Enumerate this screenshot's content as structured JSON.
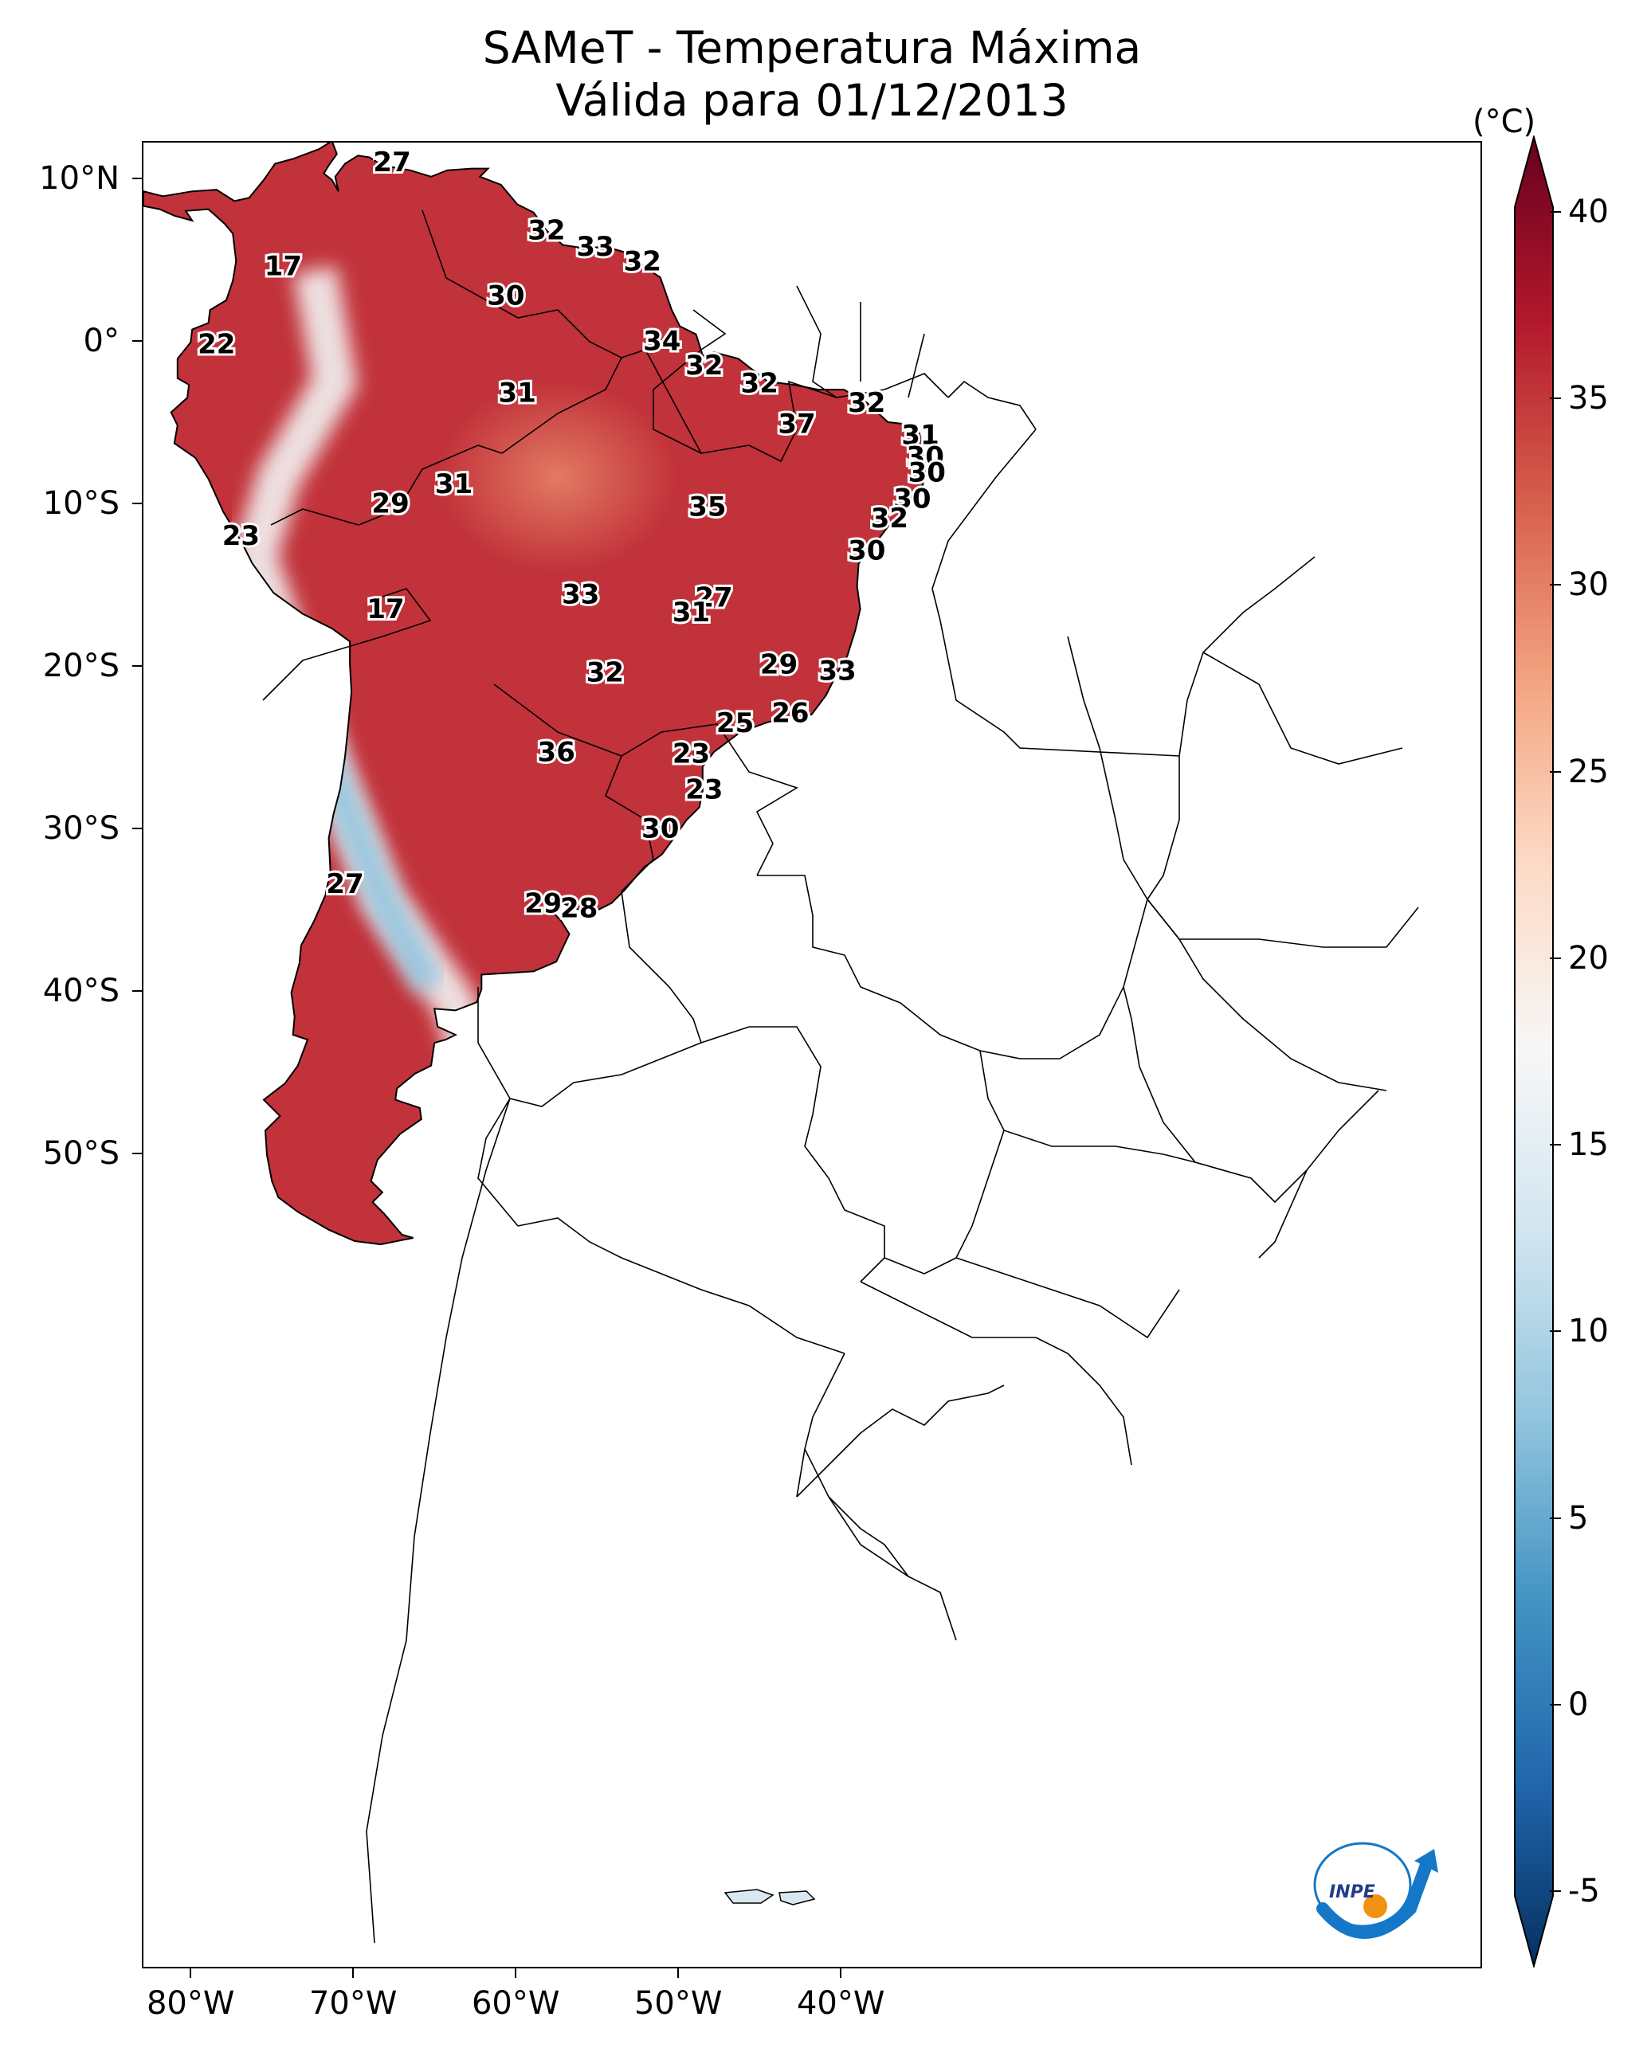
{
  "title": {
    "line1": "SAMeT - Temperatura Máxima",
    "line2": "Válida para 01/12/2013"
  },
  "colorbar": {
    "unit": "(°C)",
    "ticks": [
      "40",
      "35",
      "30",
      "25",
      "20",
      "15",
      "10",
      "5",
      "0",
      "-5"
    ],
    "range": [
      -7,
      42
    ],
    "colors": [
      "#053061",
      "#2166ac",
      "#4393c3",
      "#92c5de",
      "#d1e5f0",
      "#f7f7f7",
      "#fddbc7",
      "#f4a582",
      "#d6604d",
      "#b2182b",
      "#67001f"
    ]
  },
  "axes": {
    "lat_labels": [
      "10°N",
      "0°",
      "10°S",
      "20°S",
      "30°S",
      "40°S",
      "50°S"
    ],
    "lon_labels": [
      "80°W",
      "70°W",
      "60°W",
      "50°W",
      "40°W"
    ]
  },
  "stations": [
    {
      "t": "27",
      "lon": -67.7,
      "lat": 11.0
    },
    {
      "t": "17",
      "lon": -74.4,
      "lat": 4.6
    },
    {
      "t": "22",
      "lon": -78.5,
      "lat": -0.2
    },
    {
      "t": "32",
      "lon": -58.2,
      "lat": 6.8
    },
    {
      "t": "33",
      "lon": -55.2,
      "lat": 5.8
    },
    {
      "t": "32",
      "lon": -52.3,
      "lat": 4.9
    },
    {
      "t": "30",
      "lon": -60.7,
      "lat": 2.8
    },
    {
      "t": "34",
      "lon": -51.1,
      "lat": 0.0
    },
    {
      "t": "32",
      "lon": -48.5,
      "lat": -1.5
    },
    {
      "t": "32",
      "lon": -45.1,
      "lat": -2.6
    },
    {
      "t": "32",
      "lon": -38.5,
      "lat": -3.8
    },
    {
      "t": "31",
      "lon": -60.0,
      "lat": -3.2
    },
    {
      "t": "37",
      "lon": -42.8,
      "lat": -5.1
    },
    {
      "t": "31",
      "lon": -35.2,
      "lat": -5.8
    },
    {
      "t": "30",
      "lon": -34.9,
      "lat": -7.1
    },
    {
      "t": "30",
      "lon": -34.8,
      "lat": -8.1
    },
    {
      "t": "31",
      "lon": -63.9,
      "lat": -8.8
    },
    {
      "t": "29",
      "lon": -67.8,
      "lat": -10.0
    },
    {
      "t": "30",
      "lon": -35.7,
      "lat": -9.7
    },
    {
      "t": "35",
      "lon": -48.3,
      "lat": -10.2
    },
    {
      "t": "32",
      "lon": -37.1,
      "lat": -10.9
    },
    {
      "t": "30",
      "lon": -38.5,
      "lat": -12.9
    },
    {
      "t": "23",
      "lon": -77.0,
      "lat": -12.0
    },
    {
      "t": "17",
      "lon": -68.1,
      "lat": -16.5
    },
    {
      "t": "33",
      "lon": -56.1,
      "lat": -15.6
    },
    {
      "t": "27",
      "lon": -47.9,
      "lat": -15.8
    },
    {
      "t": "31",
      "lon": -49.3,
      "lat": -16.7
    },
    {
      "t": "29",
      "lon": -43.9,
      "lat": -19.9
    },
    {
      "t": "33",
      "lon": -40.3,
      "lat": -20.3
    },
    {
      "t": "32",
      "lon": -54.6,
      "lat": -20.4
    },
    {
      "t": "26",
      "lon": -43.2,
      "lat": -22.9
    },
    {
      "t": "25",
      "lon": -46.6,
      "lat": -23.5
    },
    {
      "t": "36",
      "lon": -57.6,
      "lat": -25.3
    },
    {
      "t": "23",
      "lon": -49.3,
      "lat": -25.4
    },
    {
      "t": "23",
      "lon": -48.5,
      "lat": -27.6
    },
    {
      "t": "30",
      "lon": -51.2,
      "lat": -30.0
    },
    {
      "t": "27",
      "lon": -70.6,
      "lat": -33.4
    },
    {
      "t": "29",
      "lon": -58.4,
      "lat": -34.6
    },
    {
      "t": "28",
      "lon": -56.2,
      "lat": -34.9
    }
  ]
}
